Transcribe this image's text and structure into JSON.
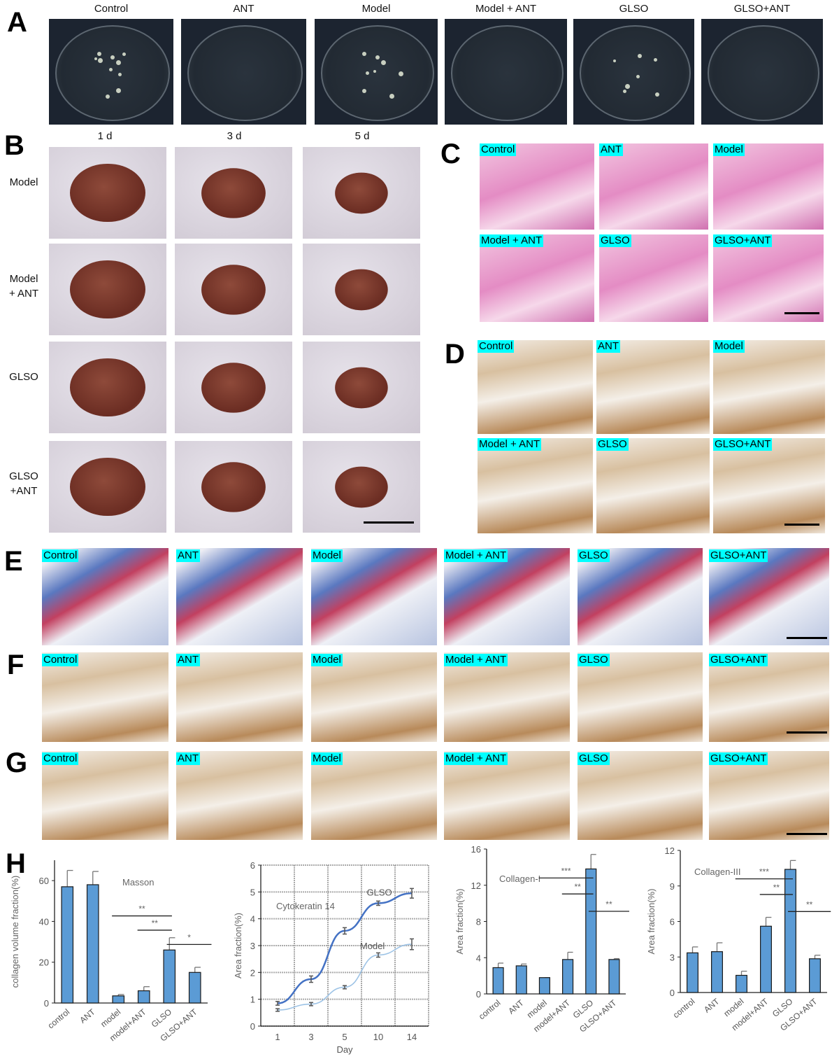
{
  "panel_labels": {
    "A": "A",
    "B": "B",
    "C": "C",
    "D": "D",
    "E": "E",
    "F": "F",
    "G": "G",
    "H": "H"
  },
  "groups": [
    "Control",
    "ANT",
    "Model",
    "Model + ANT",
    "GLSO",
    "GLSO+ANT"
  ],
  "panel_b": {
    "days": [
      "1 d",
      "3 d",
      "5 d"
    ],
    "rows": [
      "Model",
      "Model\n+ ANT",
      "GLSO",
      "GLSO\n+ANT"
    ]
  },
  "chart_data": [
    {
      "type": "bar",
      "title": "Masson",
      "ylabel": "collagen volume fraction(%)",
      "xlabel": "",
      "ylim": [
        0,
        70
      ],
      "yticks": [
        0,
        20,
        40,
        60
      ],
      "categories": [
        "control",
        "ANT",
        "model",
        "model+ANT",
        "GLSO",
        "GLSO+ANT"
      ],
      "values": [
        57,
        58,
        3.5,
        6,
        26,
        15
      ],
      "errors": [
        8,
        6.5,
        0.7,
        2,
        6,
        2.5
      ],
      "color": "#5b9bd5",
      "significance": [
        {
          "from": "model",
          "to": "GLSO",
          "label": "**"
        },
        {
          "from": "model+ANT",
          "to": "GLSO",
          "label": "**"
        },
        {
          "from": "GLSO",
          "to": "GLSO+ANT",
          "label": "*"
        }
      ]
    },
    {
      "type": "line",
      "title": "Cytokeratin 14",
      "ylabel": "Area fraction(%)",
      "xlabel": "Day",
      "ylim": [
        0,
        6
      ],
      "yticks": [
        0,
        1,
        2,
        3,
        4,
        5,
        6
      ],
      "grid": true,
      "x": [
        "1",
        "3",
        "5",
        "10",
        "14"
      ],
      "series": [
        {
          "name": "GLSO",
          "values": [
            0.85,
            1.75,
            3.55,
            4.58,
            4.95
          ],
          "errors": [
            0.07,
            0.12,
            0.12,
            0.08,
            0.18
          ],
          "color": "#4472c4"
        },
        {
          "name": "Model",
          "values": [
            0.6,
            0.82,
            1.45,
            2.65,
            3.05
          ],
          "errors": [
            0.05,
            0.06,
            0.06,
            0.08,
            0.2
          ],
          "color": "#9dc3e6"
        }
      ]
    },
    {
      "type": "bar",
      "title": "Collagen-I",
      "ylabel": "Area fraction(%)",
      "xlabel": "",
      "ylim": [
        0,
        16
      ],
      "yticks": [
        0,
        4,
        8,
        12,
        16
      ],
      "categories": [
        "control",
        "ANT",
        "model",
        "model+ANT",
        "GLSO",
        "GLSO+ANT"
      ],
      "values": [
        2.9,
        3.1,
        1.8,
        3.8,
        13.8,
        3.8
      ],
      "errors": [
        0.5,
        0.2,
        0,
        0.8,
        1.6,
        0.1
      ],
      "color": "#5b9bd5",
      "significance": [
        {
          "from": "model",
          "to": "GLSO",
          "label": "***"
        },
        {
          "from": "model+ANT",
          "to": "GLSO",
          "label": "**"
        },
        {
          "from": "GLSO",
          "to": "GLSO+ANT",
          "label": "**"
        }
      ]
    },
    {
      "type": "bar",
      "title": "Collagen-III",
      "ylabel": "Area fraction(%)",
      "xlabel": "",
      "ylim": [
        0,
        12
      ],
      "yticks": [
        0,
        3,
        6,
        9,
        12
      ],
      "categories": [
        "control",
        "ANT",
        "model",
        "model+ANT",
        "GLSO",
        "GLSO+ANT"
      ],
      "values": [
        3.35,
        3.45,
        1.45,
        5.6,
        10.4,
        2.85
      ],
      "errors": [
        0.5,
        0.75,
        0.35,
        0.75,
        0.75,
        0.3
      ],
      "color": "#5b9bd5",
      "significance": [
        {
          "from": "model",
          "to": "GLSO",
          "label": "***"
        },
        {
          "from": "model+ANT",
          "to": "GLSO",
          "label": "**"
        },
        {
          "from": "GLSO",
          "to": "GLSO+ANT",
          "label": "**"
        }
      ]
    }
  ]
}
